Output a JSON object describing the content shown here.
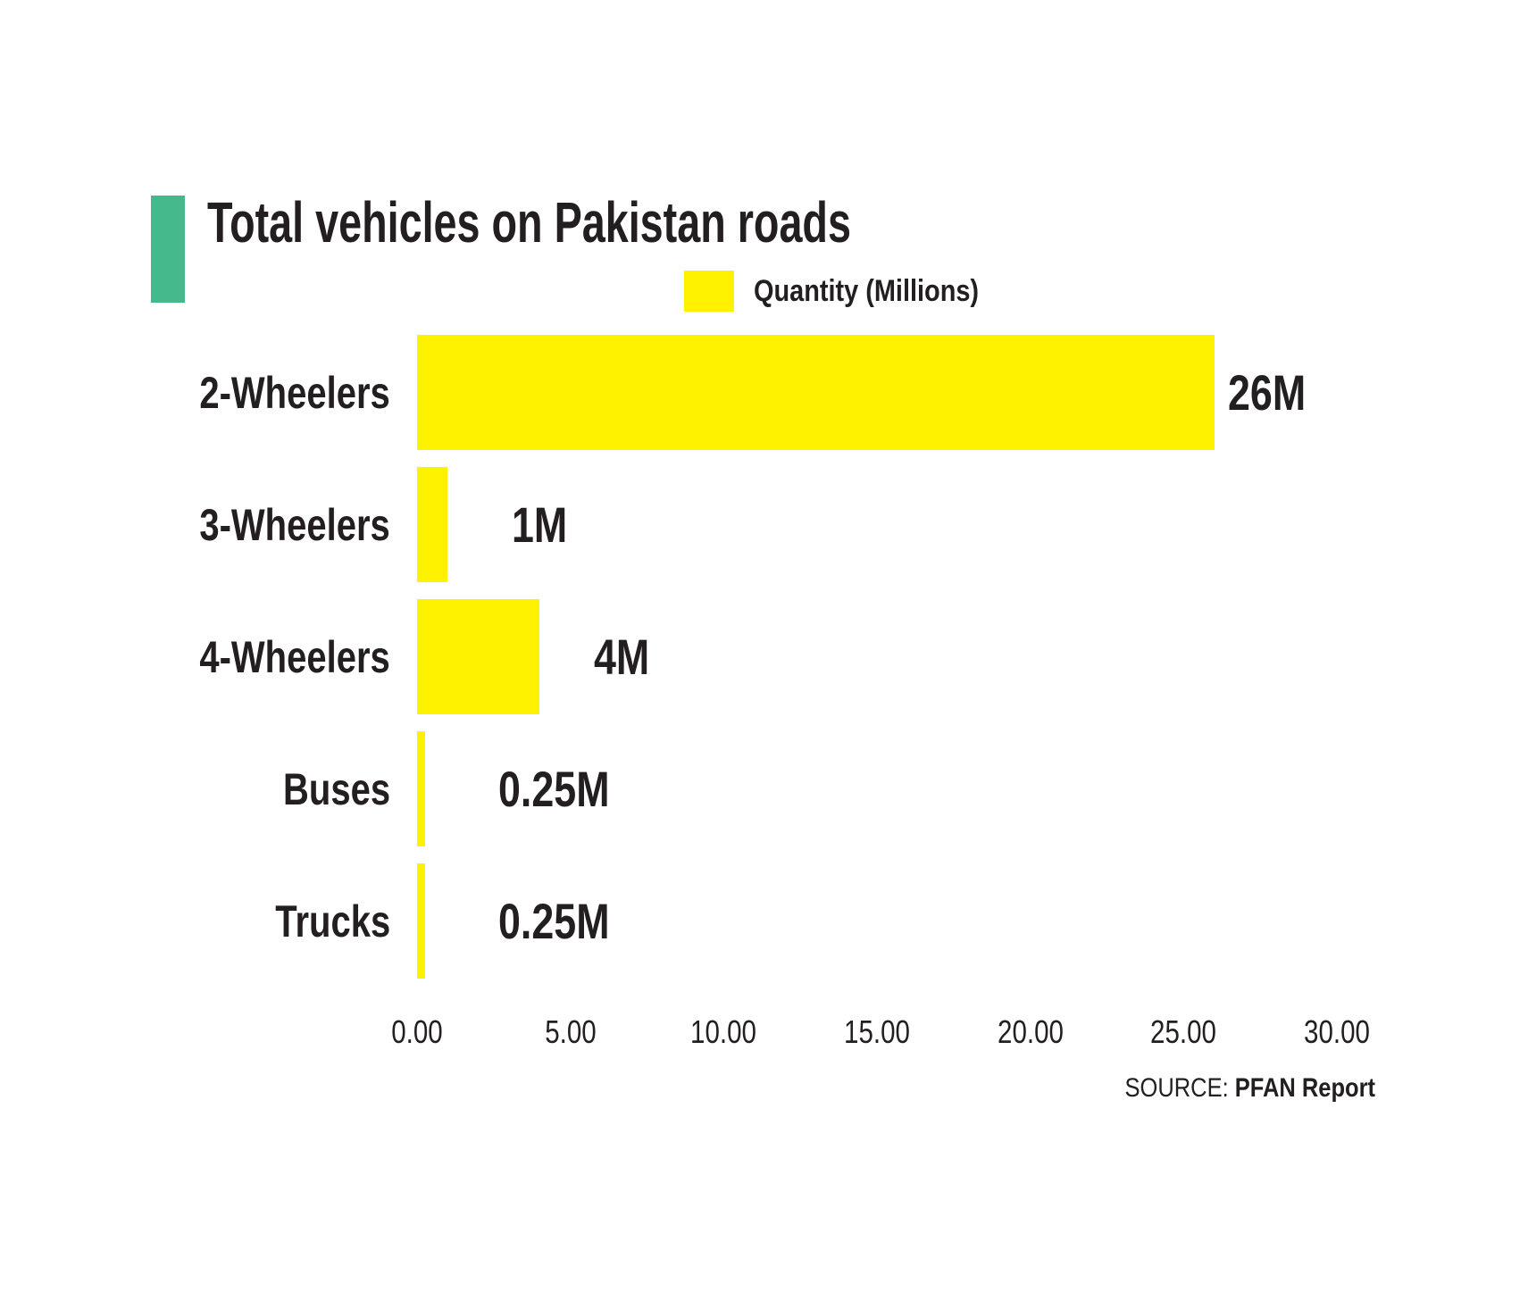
{
  "title": "Total vehicles on Pakistan roads",
  "legend": {
    "label": "Quantity (Millions)"
  },
  "source": {
    "prefix": "SOURCE:",
    "name": "PFAN Report"
  },
  "colors": {
    "bar": "#FFF200",
    "accent": "#45B98B",
    "text": "#231F20",
    "background": "#FFFFFF"
  },
  "chart_data": {
    "type": "bar",
    "orientation": "horizontal",
    "title": "Total vehicles on Pakistan roads",
    "series_name": "Quantity (Millions)",
    "categories": [
      "2-Wheelers",
      "3-Wheelers",
      "4-Wheelers",
      "Buses",
      "Trucks"
    ],
    "values": [
      26,
      1,
      4,
      0.25,
      0.25
    ],
    "value_labels": [
      "26M",
      "1M",
      "4M",
      "0.25M",
      "0.25M"
    ],
    "xlabel": "",
    "ylabel": "",
    "xlim": [
      0,
      30
    ],
    "x_tick_values": [
      0,
      5,
      10,
      15,
      20,
      25,
      30
    ],
    "x_ticks": [
      "0.00",
      "5.00",
      "10.00",
      "15.00",
      "20.00",
      "25.00",
      "30.00"
    ],
    "gridlines": false,
    "legend_position": "top",
    "source": "SOURCE: PFAN Report"
  }
}
